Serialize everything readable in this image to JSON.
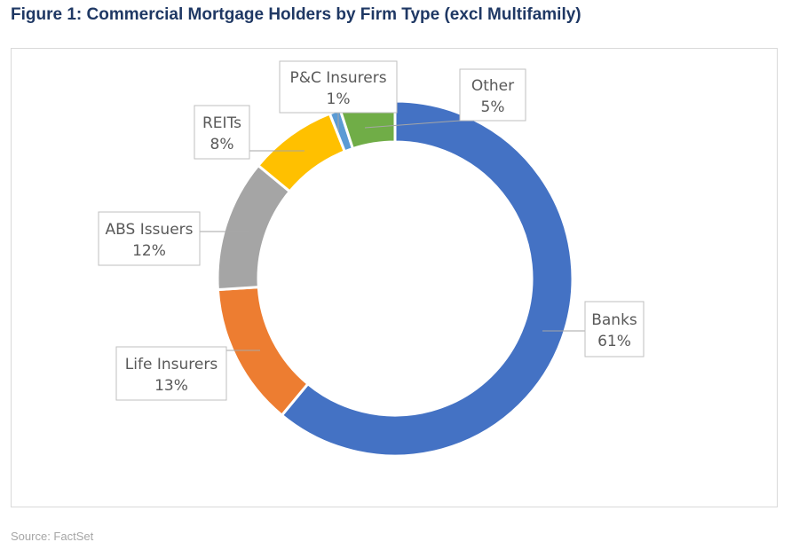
{
  "figure": {
    "title": "Figure 1: Commercial Mortgage Holders by Firm Type (excl Multifamily)",
    "source": "Source: FactSet"
  },
  "chart_data": {
    "type": "pie",
    "variant": "donut",
    "title": "",
    "start": "top",
    "direction": "clockwise",
    "slices": [
      {
        "label": "Banks",
        "value": 61,
        "value_label": "61%",
        "color": "#4472c4"
      },
      {
        "label": "Life Insurers",
        "value": 13,
        "value_label": "13%",
        "color": "#ed7d31"
      },
      {
        "label": "ABS Issuers",
        "value": 12,
        "value_label": "12%",
        "color": "#a5a5a5"
      },
      {
        "label": "REITs",
        "value": 8,
        "value_label": "8%",
        "color": "#ffc000"
      },
      {
        "label": "P&C Insurers",
        "value": 1,
        "value_label": "1%",
        "color": "#5b9bd5"
      },
      {
        "label": "Other",
        "value": 5,
        "value_label": "5%",
        "color": "#70ad47"
      }
    ]
  }
}
